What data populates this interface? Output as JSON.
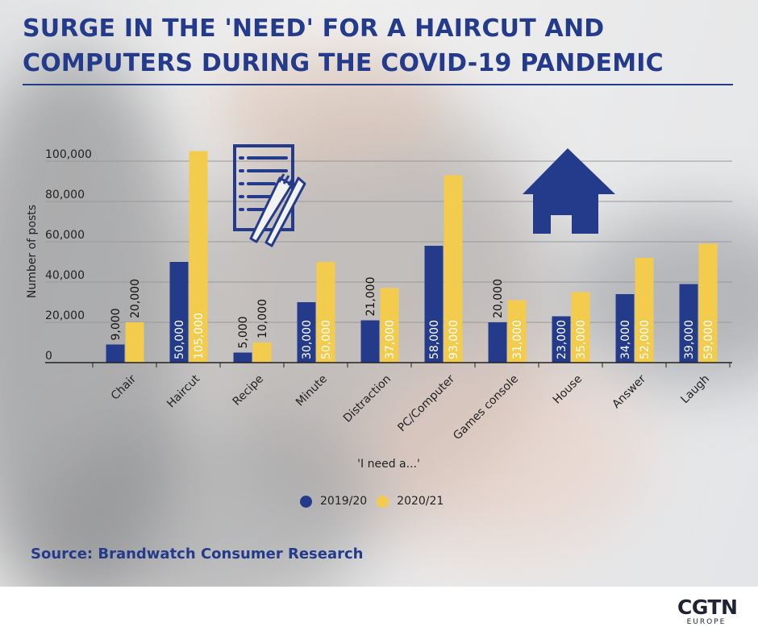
{
  "title": "SURGE IN THE 'NEED' FOR A HAIRCUT AND COMPUTERS DURING THE COVID-19 PANDEMIC",
  "source": "Source: Brandwatch Consumer Research",
  "logo": {
    "main": "CGTN",
    "sub": "EUROPE"
  },
  "icons": [
    "menu-fork-knife-icon",
    "house-icon"
  ],
  "colors": {
    "series_2019": "#243b8c",
    "series_2020": "#f3cc4e",
    "title": "#243b8c"
  },
  "chart_data": {
    "type": "bar",
    "title": "SURGE IN THE 'NEED' FOR A HAIRCUT AND COMPUTERS DURING THE COVID-19 PANDEMIC",
    "xlabel": "'I need a...'",
    "ylabel": "Number of posts",
    "ylim": [
      0,
      100000
    ],
    "yticks": [
      "0",
      "20,000",
      "40,000",
      "60,000",
      "80,000",
      "100,000"
    ],
    "grid": true,
    "legend_position": "bottom",
    "categories": [
      "Chair",
      "Haircut",
      "Recipe",
      "Minute",
      "Distraction",
      "PC/Computer",
      "Games console",
      "House",
      "Answer",
      "Laugh"
    ],
    "series": [
      {
        "name": "2019/20",
        "color": "#243b8c",
        "values": [
          9000,
          50000,
          5000,
          30000,
          21000,
          58000,
          20000,
          23000,
          34000,
          39000
        ],
        "labels": [
          "9,000",
          "50,000",
          "5,000",
          "30,000",
          "21,000",
          "58,000",
          "20,000",
          "23,000",
          "34,000",
          "39,000"
        ]
      },
      {
        "name": "2020/21",
        "color": "#f3cc4e",
        "values": [
          20000,
          105000,
          10000,
          50000,
          37000,
          93000,
          31000,
          35000,
          52000,
          59000
        ],
        "labels": [
          "20,000",
          "105,000",
          "10,000",
          "50,000",
          "37,000",
          "93,000",
          "31,000",
          "35,000",
          "52,000",
          "59,000"
        ]
      }
    ]
  }
}
